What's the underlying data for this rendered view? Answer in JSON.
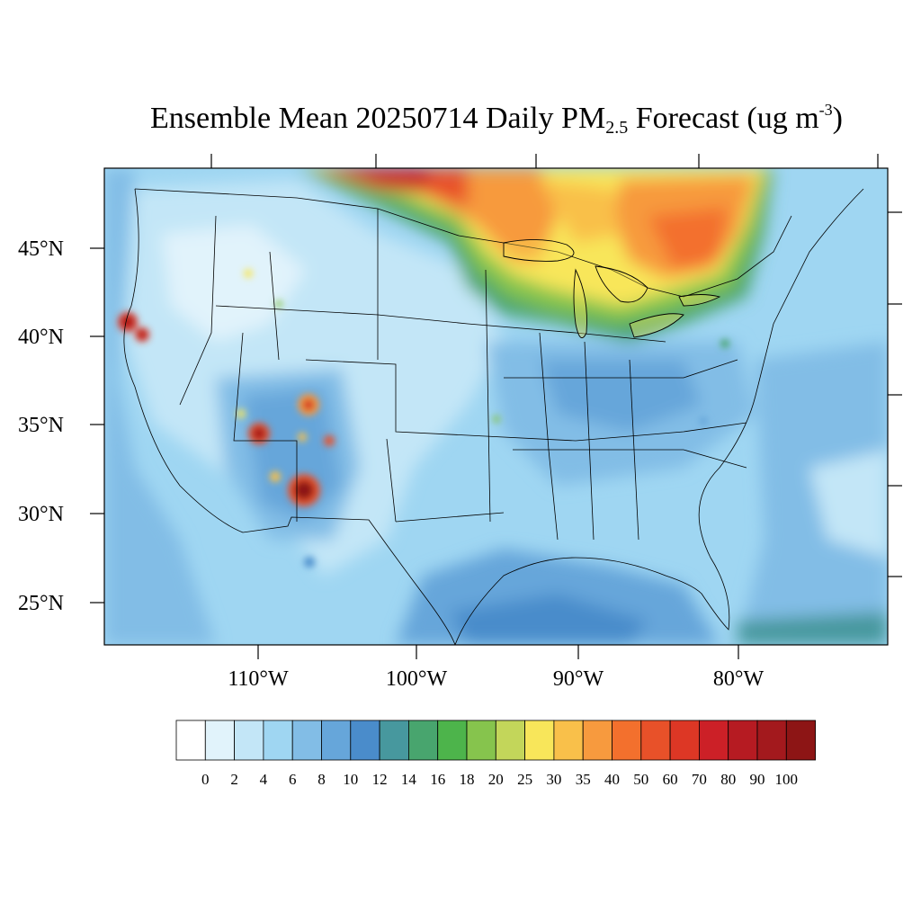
{
  "title": {
    "prefix": "Ensemble Mean 20250714 Daily PM",
    "subscript": "2.5",
    "middle": " Forecast (ug m",
    "superscript": "-3",
    "suffix": ")"
  },
  "map": {
    "projection": "lambert-conformal",
    "region": "contiguous-united-states",
    "lat_labels": [
      "45°N",
      "40°N",
      "35°N",
      "30°N",
      "25°N"
    ],
    "lon_labels": [
      "110°W",
      "100°W",
      "90°W",
      "80°W"
    ]
  },
  "colorbar": {
    "labels": [
      "0",
      "2",
      "4",
      "6",
      "8",
      "10",
      "12",
      "14",
      "16",
      "18",
      "20",
      "25",
      "30",
      "35",
      "40",
      "50",
      "60",
      "70",
      "80",
      "90",
      "100"
    ],
    "colors": [
      "#ffffff",
      "#e1f3fb",
      "#c3e6f7",
      "#9fd6f2",
      "#82bde6",
      "#66a6da",
      "#4a8ccb",
      "#47989e",
      "#48a56e",
      "#4db44b",
      "#86c44d",
      "#c3d65a",
      "#f8e65a",
      "#f9c04a",
      "#f79a3e",
      "#f3702d",
      "#e85129",
      "#dd3725",
      "#cc2027",
      "#b61b22",
      "#a3191d",
      "#8d1515"
    ]
  }
}
